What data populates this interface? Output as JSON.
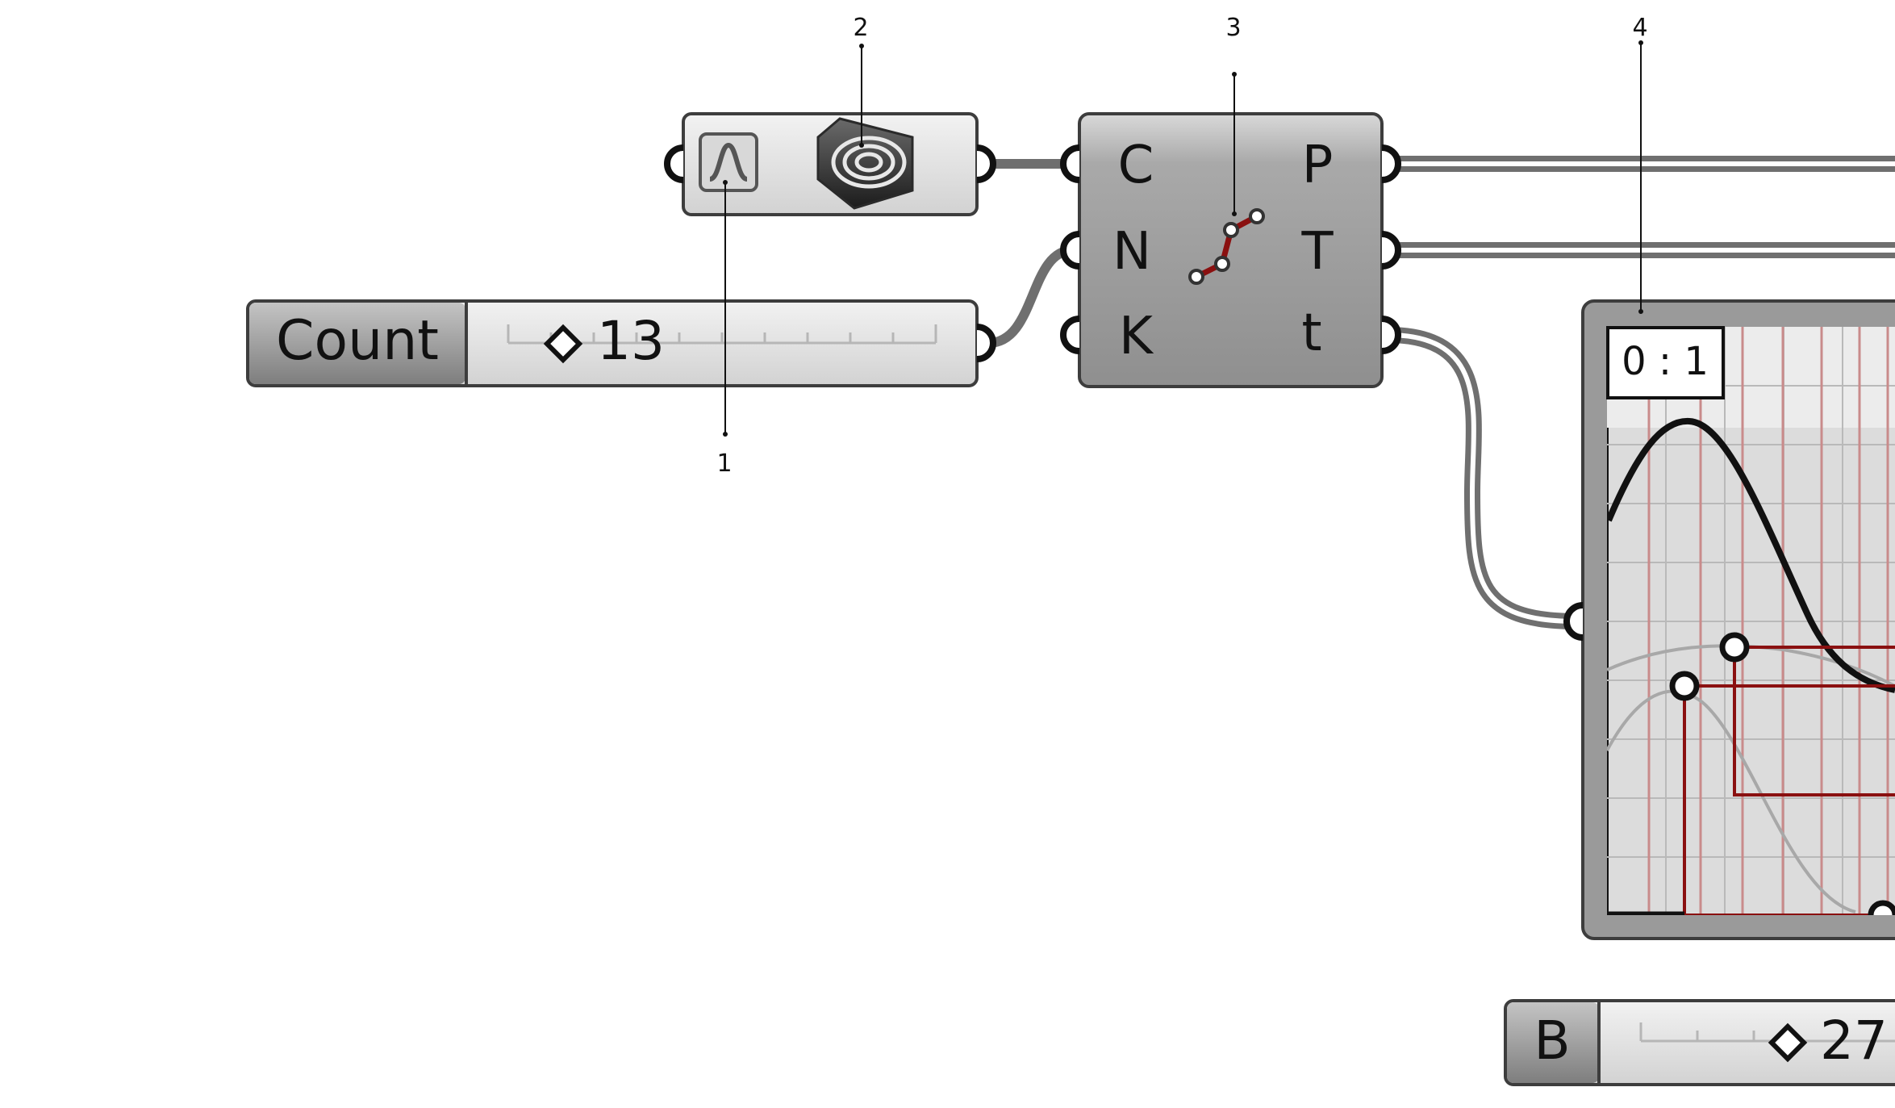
{
  "callouts": [
    {
      "id": "1",
      "label": "1"
    },
    {
      "id": "2",
      "label": "2"
    },
    {
      "id": "3",
      "label": "3"
    },
    {
      "id": "4",
      "label": "4"
    }
  ],
  "count_slider": {
    "name": "Count",
    "value": "13"
  },
  "b_slider": {
    "name": "B",
    "value": "27"
  },
  "divide_component": {
    "inputs": [
      "C",
      "N",
      "K"
    ],
    "outputs": [
      "P",
      "T",
      "t"
    ]
  },
  "graph_mapper": {
    "domain_label": "0 : 1"
  },
  "colors": {
    "component_fill": "#9c9c9c",
    "wire": "#6f6f6f",
    "accent_red": "#8a1010",
    "grid_red": "#c98b8b"
  }
}
